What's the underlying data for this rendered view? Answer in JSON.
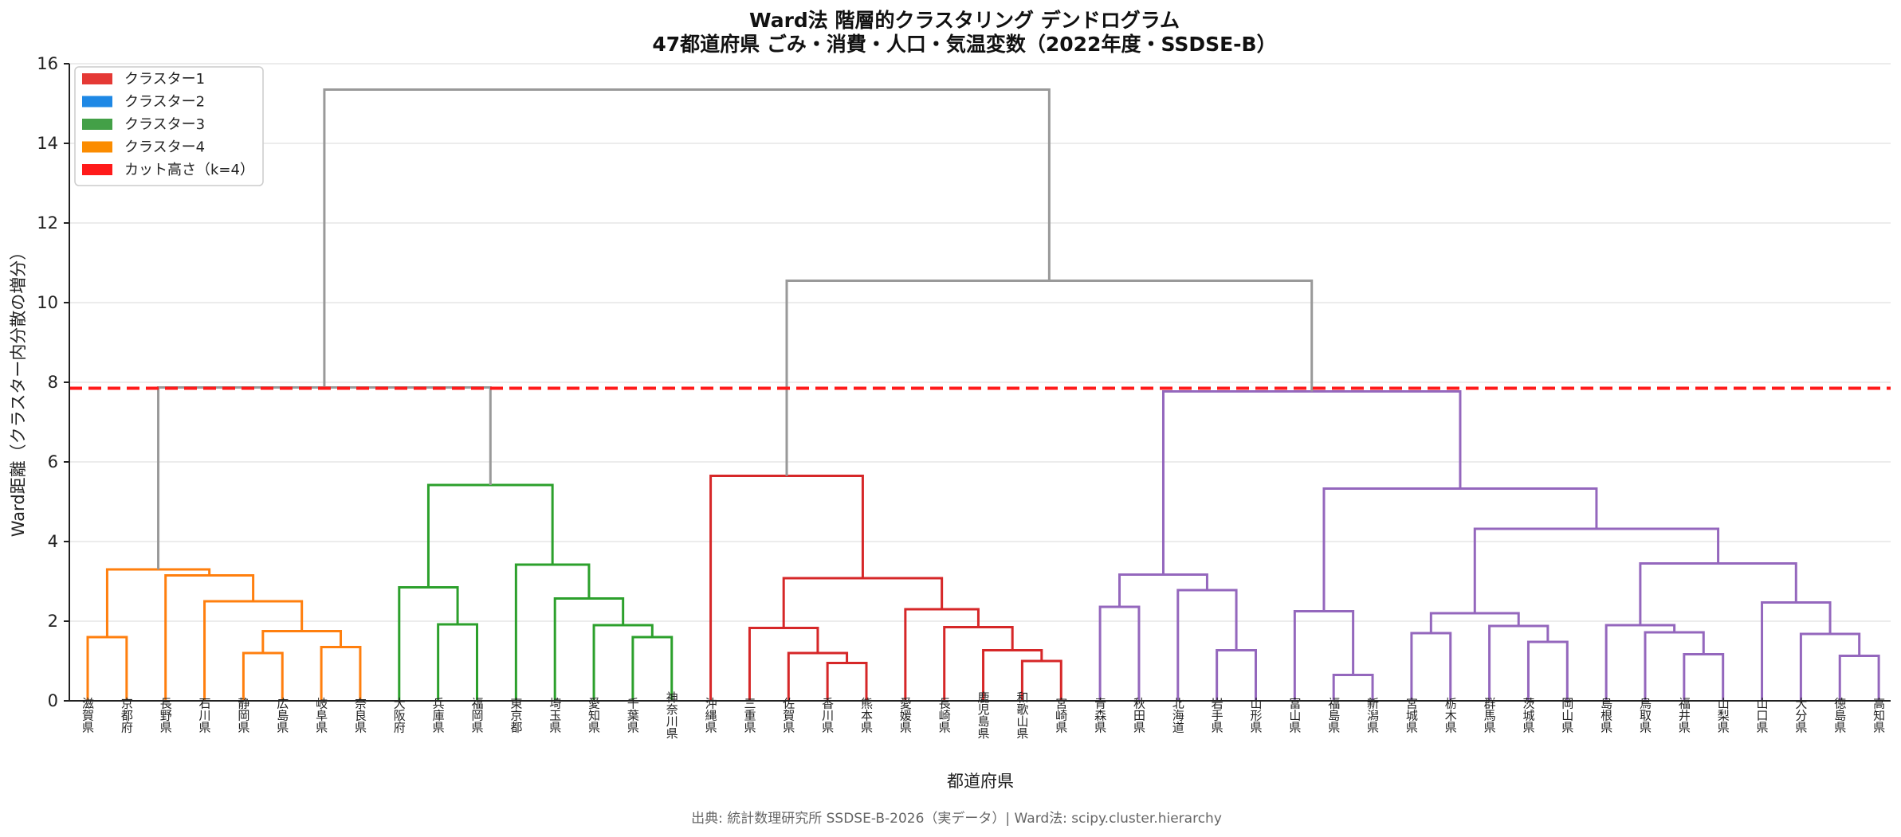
{
  "chart_data": {
    "type": "dendrogram",
    "title": "Ward法 階層的クラスタリング デンドログラム",
    "subtitle": "47都道府県 ごみ・消費・人口・気温変数（2022年度・SSDSE-B）",
    "xlabel": "都道府県",
    "ylabel": "Ward距離（クラスター内分散の増分）",
    "ylim": [
      0,
      16
    ],
    "yticks": [
      0,
      2,
      4,
      6,
      8,
      10,
      12,
      14,
      16
    ],
    "grid": true,
    "cut_height": 7.85,
    "legend_position": "top-left",
    "legend": [
      {
        "label": "クラスター1",
        "color": "#e53935",
        "kind": "patch"
      },
      {
        "label": "クラスター2",
        "color": "#1e88e5",
        "kind": "patch"
      },
      {
        "label": "クラスター3",
        "color": "#43a047",
        "kind": "patch"
      },
      {
        "label": "クラスター4",
        "color": "#fb8c00",
        "kind": "patch"
      },
      {
        "label": "カット高さ（k=4）",
        "color": "#ff1a1a",
        "kind": "patch"
      }
    ],
    "leaves": [
      "滋賀県",
      "京都府",
      "長野県",
      "石川県",
      "静岡県",
      "広島県",
      "岐阜県",
      "奈良県",
      "大阪府",
      "兵庫県",
      "福岡県",
      "東京都",
      "埼玉県",
      "愛知県",
      "千葉県",
      "神奈川県",
      "沖縄県",
      "三重県",
      "佐賀県",
      "香川県",
      "熊本県",
      "愛媛県",
      "長崎県",
      "鹿児島県",
      "和歌山県",
      "宮崎県",
      "青森県",
      "秋田県",
      "北海道",
      "岩手県",
      "山形県",
      "富山県",
      "福島県",
      "新潟県",
      "宮城県",
      "栃木県",
      "群馬県",
      "茨城県",
      "岡山県",
      "島根県",
      "鳥取県",
      "福井県",
      "山梨県",
      "山口県",
      "大分県",
      "徳島県",
      "高知県"
    ],
    "link_colors": {
      "orange": "#ff7f0e",
      "green": "#2ca02c",
      "red": "#d62728",
      "purple": "#9467bd",
      "above": "#999999"
    },
    "links": [
      {
        "a": 0,
        "b": 1,
        "h": 1.6,
        "c": "orange"
      },
      {
        "a": 4,
        "b": 5,
        "h": 1.2,
        "c": "orange"
      },
      {
        "a": 6,
        "b": 7,
        "h": 1.35,
        "c": "orange"
      },
      {
        "a": "n2",
        "b": "n3",
        "h": 1.75,
        "c": "orange"
      },
      {
        "a": 3,
        "b": "n4",
        "h": 2.5,
        "c": "orange"
      },
      {
        "a": 2,
        "b": "n5",
        "h": 3.15,
        "c": "orange"
      },
      {
        "a": "n1",
        "b": "n6",
        "h": 3.3,
        "c": "orange"
      },
      {
        "a": 9,
        "b": 10,
        "h": 1.92,
        "c": "green"
      },
      {
        "a": 8,
        "b": "n8",
        "h": 2.85,
        "c": "green"
      },
      {
        "a": 14,
        "b": 15,
        "h": 1.6,
        "c": "green"
      },
      {
        "a": 13,
        "b": "n10",
        "h": 1.9,
        "c": "green"
      },
      {
        "a": 12,
        "b": "n11",
        "h": 2.57,
        "c": "green"
      },
      {
        "a": 11,
        "b": "n12",
        "h": 3.42,
        "c": "green"
      },
      {
        "a": "n9",
        "b": "n13",
        "h": 5.42,
        "c": "green"
      },
      {
        "a": "n7",
        "b": "n14",
        "h": 7.87,
        "c": "above"
      },
      {
        "a": 19,
        "b": 20,
        "h": 0.95,
        "c": "red"
      },
      {
        "a": 18,
        "b": "n16",
        "h": 1.2,
        "c": "red"
      },
      {
        "a": 17,
        "b": "n17",
        "h": 1.83,
        "c": "red"
      },
      {
        "a": 24,
        "b": 25,
        "h": 1.0,
        "c": "red"
      },
      {
        "a": 23,
        "b": "n19",
        "h": 1.27,
        "c": "red"
      },
      {
        "a": 22,
        "b": "n20",
        "h": 1.85,
        "c": "red"
      },
      {
        "a": 21,
        "b": "n21",
        "h": 2.3,
        "c": "red"
      },
      {
        "a": "n18",
        "b": "n22",
        "h": 3.08,
        "c": "red"
      },
      {
        "a": 16,
        "b": "n23",
        "h": 5.65,
        "c": "red"
      },
      {
        "a": 26,
        "b": 27,
        "h": 2.36,
        "c": "purple"
      },
      {
        "a": 29,
        "b": 30,
        "h": 1.27,
        "c": "purple"
      },
      {
        "a": 28,
        "b": "n26",
        "h": 2.78,
        "c": "purple"
      },
      {
        "a": "n25",
        "b": "n27",
        "h": 3.17,
        "c": "purple"
      },
      {
        "a": 32,
        "b": 33,
        "h": 0.65,
        "c": "purple"
      },
      {
        "a": 31,
        "b": "n29",
        "h": 2.25,
        "c": "purple"
      },
      {
        "a": 34,
        "b": 35,
        "h": 1.7,
        "c": "purple"
      },
      {
        "a": 37,
        "b": 38,
        "h": 1.48,
        "c": "purple"
      },
      {
        "a": 36,
        "b": "n32",
        "h": 1.88,
        "c": "purple"
      },
      {
        "a": "n31",
        "b": "n33",
        "h": 2.2,
        "c": "purple"
      },
      {
        "a": 41,
        "b": 42,
        "h": 1.17,
        "c": "purple"
      },
      {
        "a": 40,
        "b": "n35",
        "h": 1.72,
        "c": "purple"
      },
      {
        "a": 39,
        "b": "n36",
        "h": 1.9,
        "c": "purple"
      },
      {
        "a": 45,
        "b": 46,
        "h": 1.13,
        "c": "purple"
      },
      {
        "a": 44,
        "b": "n38",
        "h": 1.68,
        "c": "purple"
      },
      {
        "a": 43,
        "b": "n39",
        "h": 2.47,
        "c": "purple"
      },
      {
        "a": "n37",
        "b": "n40",
        "h": 3.45,
        "c": "purple"
      },
      {
        "a": "n34",
        "b": "n41",
        "h": 4.32,
        "c": "purple"
      },
      {
        "a": "n30",
        "b": "n42",
        "h": 5.33,
        "c": "purple"
      },
      {
        "a": "n28",
        "b": "n43",
        "h": 7.77,
        "c": "purple"
      },
      {
        "a": "n24",
        "b": "n44",
        "h": 10.55,
        "c": "above"
      },
      {
        "a": "n15",
        "b": "n45",
        "h": 15.35,
        "c": "above"
      }
    ]
  },
  "footer": {
    "source": "出典: 統計数理研究所 SSDSE-B-2026（実データ）| Ward法: scipy.cluster.hierarchy"
  }
}
